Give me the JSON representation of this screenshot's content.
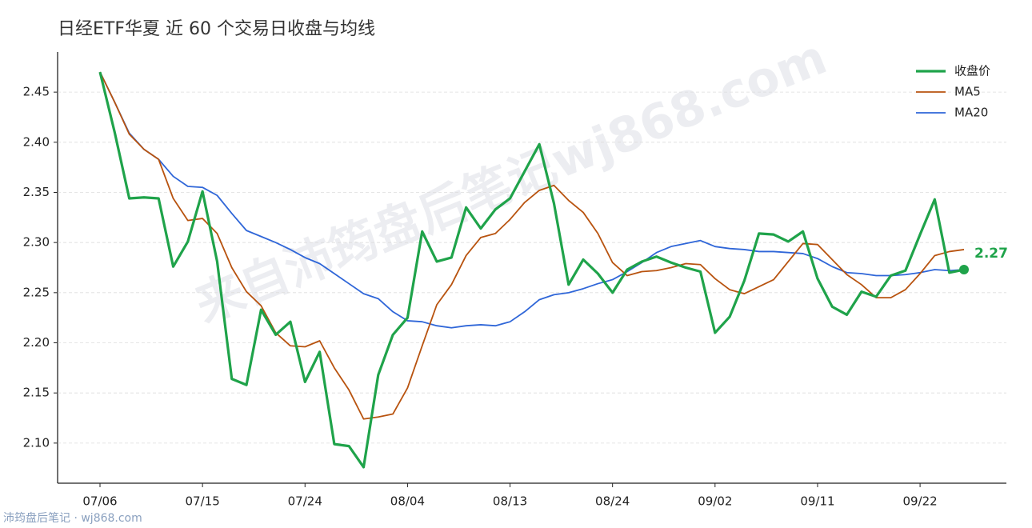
{
  "chart_data": {
    "type": "line",
    "title": "日经ETF华夏 近 60 个交易日收盘与均线",
    "watermark": "来自沛筠盘后笔记wj868.com",
    "footer": "沛筠盘后笔记 · wj868.com",
    "categories": [
      "07/06",
      null,
      null,
      null,
      null,
      null,
      null,
      "07/15",
      null,
      null,
      null,
      null,
      null,
      null,
      "07/24",
      null,
      null,
      null,
      null,
      null,
      null,
      "08/04",
      null,
      null,
      null,
      null,
      null,
      null,
      "08/13",
      null,
      null,
      null,
      null,
      null,
      null,
      "08/24",
      null,
      null,
      null,
      null,
      null,
      null,
      "09/02",
      null,
      null,
      null,
      null,
      null,
      null,
      "09/11",
      null,
      null,
      null,
      null,
      null,
      null,
      "09/22",
      null,
      null,
      null
    ],
    "series": [
      {
        "name": "收盘价",
        "color": "#1fa34a",
        "width": 3.2,
        "values": [
          2.47,
          2.41,
          2.344,
          2.345,
          2.344,
          2.276,
          2.301,
          2.351,
          2.281,
          2.164,
          2.158,
          2.233,
          2.208,
          2.221,
          2.161,
          2.191,
          2.099,
          2.097,
          2.076,
          2.168,
          2.208,
          2.225,
          2.311,
          2.281,
          2.285,
          2.335,
          2.314,
          2.333,
          2.344,
          2.371,
          2.398,
          2.339,
          2.258,
          2.283,
          2.269,
          2.25,
          2.273,
          2.281,
          2.286,
          2.28,
          2.275,
          2.271,
          2.21,
          2.226,
          2.262,
          2.309,
          2.308,
          2.301,
          2.311,
          2.264,
          2.236,
          2.228,
          2.251,
          2.246,
          2.267,
          2.272,
          2.308,
          2.343,
          2.27,
          2.273
        ],
        "value_labels": [
          null,
          null,
          null,
          null,
          null,
          null,
          null,
          null,
          null,
          null,
          null,
          null,
          null,
          null,
          null,
          null,
          null,
          null,
          null,
          null,
          null,
          null,
          null,
          null,
          null,
          null,
          null,
          null,
          null,
          null,
          null,
          null,
          null,
          null,
          null,
          null,
          null,
          null,
          null,
          null,
          null,
          null,
          null,
          null,
          null,
          null,
          null,
          null,
          null,
          null,
          null,
          null,
          null,
          null,
          null,
          null,
          null,
          null,
          null,
          "2.27"
        ]
      },
      {
        "name": "MA5",
        "color": "#b8530f",
        "width": 1.8,
        "values": [
          2.47,
          2.44,
          2.408,
          2.393,
          2.383,
          2.344,
          2.322,
          2.324,
          2.309,
          2.275,
          2.251,
          2.237,
          2.21,
          2.197,
          2.196,
          2.202,
          2.175,
          2.153,
          2.124,
          2.126,
          2.129,
          2.155,
          2.197,
          2.238,
          2.258,
          2.287,
          2.305,
          2.309,
          2.323,
          2.34,
          2.352,
          2.357,
          2.342,
          2.33,
          2.309,
          2.28,
          2.267,
          2.271,
          2.272,
          2.275,
          2.279,
          2.278,
          2.264,
          2.253,
          2.249,
          2.256,
          2.263,
          2.281,
          2.299,
          2.298,
          2.283,
          2.268,
          2.258,
          2.245,
          2.245,
          2.253,
          2.269,
          2.287,
          2.291,
          2.293
        ]
      },
      {
        "name": "MA20",
        "color": "#2f66d8",
        "width": 1.8,
        "values": [
          2.47,
          2.44,
          2.409,
          2.393,
          2.383,
          2.366,
          2.356,
          2.355,
          2.347,
          2.329,
          2.312,
          2.306,
          2.3,
          2.293,
          2.285,
          2.279,
          2.269,
          2.259,
          2.249,
          2.244,
          2.231,
          2.222,
          2.221,
          2.217,
          2.215,
          2.217,
          2.218,
          2.217,
          2.221,
          2.231,
          2.243,
          2.248,
          2.25,
          2.254,
          2.259,
          2.263,
          2.271,
          2.28,
          2.29,
          2.296,
          2.299,
          2.302,
          2.296,
          2.294,
          2.293,
          2.291,
          2.291,
          2.29,
          2.289,
          2.284,
          2.276,
          2.27,
          2.269,
          2.267,
          2.267,
          2.268,
          2.27,
          2.273,
          2.272,
          2.273
        ]
      }
    ],
    "ylim": [
      2.06,
      2.49
    ],
    "yticks": [
      {
        "value": 2.1,
        "label": "2.10"
      },
      2.15,
      {
        "value": 2.2,
        "label": "2.20"
      },
      2.25,
      {
        "value": 2.3,
        "label": "2.30"
      },
      2.35,
      {
        "value": 2.4,
        "label": "2.40"
      },
      2.45
    ],
    "grid": true,
    "legend": "upper right"
  }
}
